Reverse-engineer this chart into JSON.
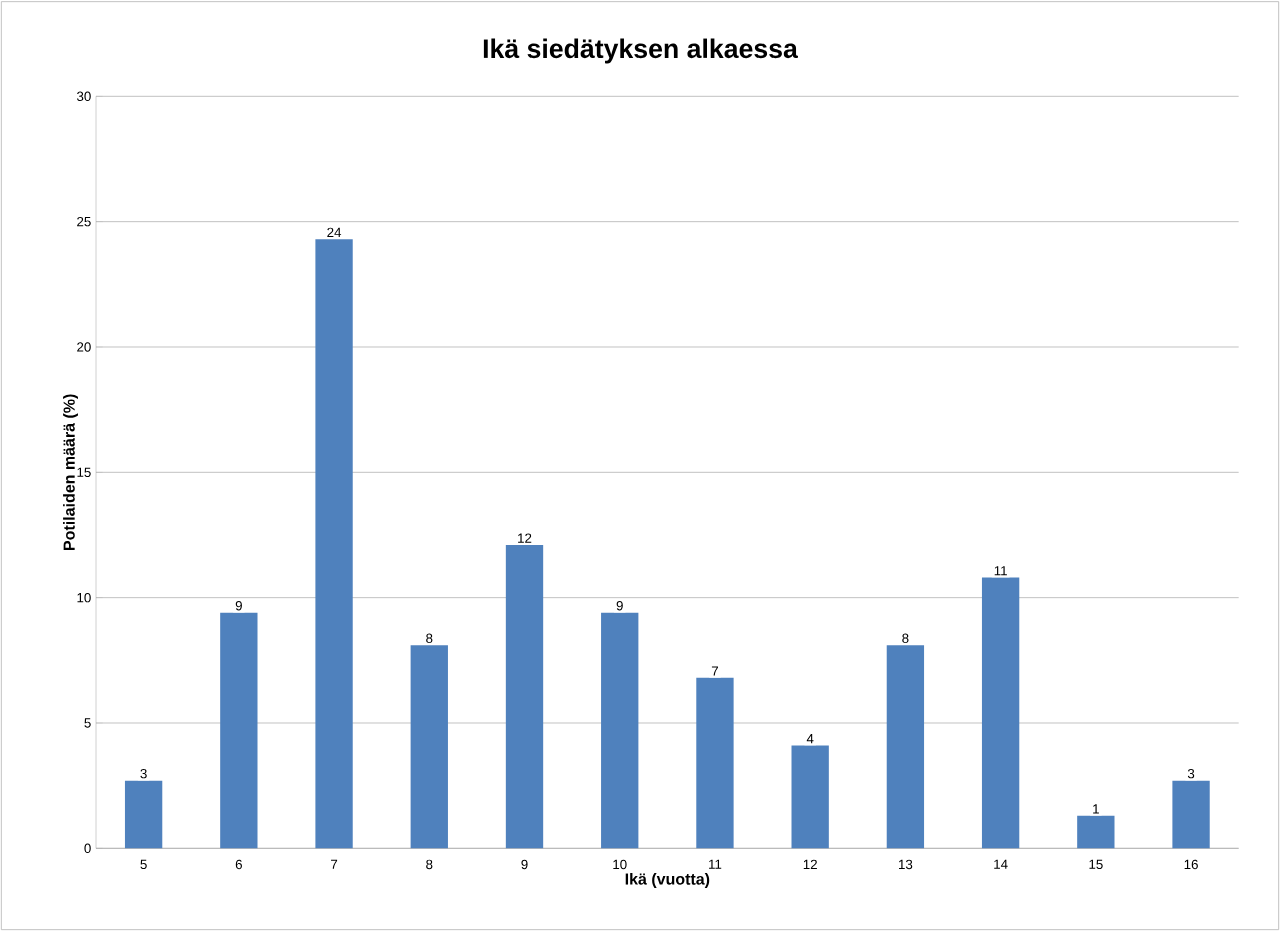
{
  "chart_data": {
    "type": "bar",
    "title": "Ikä siedätyksen  alkaessa",
    "xlabel": "Ikä (vuotta)",
    "ylabel": "Potilaiden määrä (%)",
    "categories": [
      "5",
      "6",
      "7",
      "8",
      "9",
      "10",
      "11",
      "12",
      "13",
      "14",
      "15",
      "16"
    ],
    "values": [
      2.7,
      9.4,
      24.3,
      8.1,
      12.1,
      9.4,
      6.8,
      4.1,
      8.1,
      10.8,
      1.3,
      2.7
    ],
    "value_labels": [
      "3",
      "9",
      "24",
      "8",
      "12",
      "9",
      "7",
      "4",
      "8",
      "11",
      "1",
      "3"
    ],
    "color": "#4f81bd",
    "ylim": [
      0,
      30
    ],
    "yticks": [
      0,
      5,
      10,
      15,
      20,
      25,
      30
    ],
    "grid": "y"
  }
}
